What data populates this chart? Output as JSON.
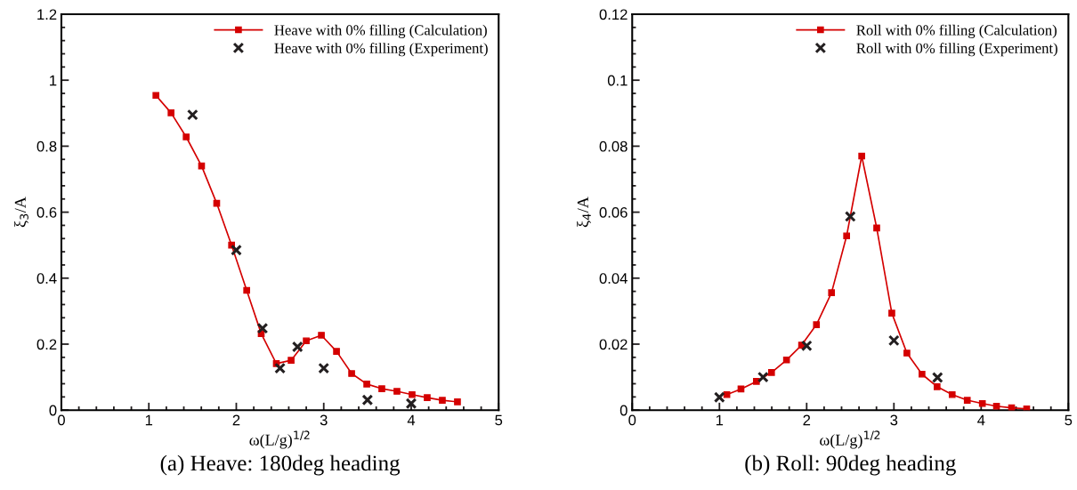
{
  "chart_data": [
    {
      "type": "line",
      "xlabel": "ω(L/g)$^{1/2}$",
      "ylabel": "ξ$_{3}$/A",
      "xlim": [
        0,
        5
      ],
      "ylim": [
        0,
        1.2
      ],
      "xticks": [
        0,
        1,
        2,
        3,
        4,
        5
      ],
      "yticks": [
        0,
        0.2,
        0.4,
        0.6,
        0.8,
        1,
        1.2
      ],
      "grid": false,
      "legend": "top right",
      "annotations": [
        "(a) Heave: 180deg heading"
      ],
      "series": [
        {
          "name": "Heave with 0% filling (Calculation)",
          "color": "#d40000",
          "marker": "square",
          "line_style": "solid",
          "x": [
            1.081,
            1.254,
            1.427,
            1.603,
            1.776,
            1.946,
            2.119,
            2.285,
            2.458,
            2.627,
            2.8,
            2.973,
            3.146,
            3.319,
            3.492,
            3.664,
            3.837,
            4.01,
            4.183,
            4.356,
            4.529
          ],
          "values": [
            0.954,
            0.901,
            0.828,
            0.74,
            0.627,
            0.5,
            0.363,
            0.232,
            0.141,
            0.151,
            0.21,
            0.227,
            0.178,
            0.111,
            0.079,
            0.065,
            0.057,
            0.047,
            0.038,
            0.03,
            0.025
          ]
        },
        {
          "name": "Heave with 0% filling (Experiment)",
          "type": "scatter",
          "color": "#231f20",
          "marker": "cross",
          "x": [
            1.5,
            2.0,
            2.3,
            2.5,
            2.7,
            3.0,
            3.5,
            4.0
          ],
          "values": [
            0.895,
            0.485,
            0.248,
            0.127,
            0.192,
            0.127,
            0.031,
            0.02
          ]
        }
      ]
    },
    {
      "type": "line",
      "xlabel": "ω(L/g)$^{1/2}$",
      "ylabel": "ξ$_{4}$/A",
      "xlim": [
        0,
        5
      ],
      "ylim": [
        0,
        0.12
      ],
      "xticks": [
        0,
        1,
        2,
        3,
        4,
        5
      ],
      "yticks": [
        0,
        0.02,
        0.04,
        0.06,
        0.08,
        0.1,
        0.12
      ],
      "grid": false,
      "legend": "top right",
      "annotations": [
        "(b) Roll: 90deg heading"
      ],
      "series": [
        {
          "name": "Roll with 0% filling (Calculation)",
          "color": "#d40000",
          "marker": "square",
          "line_style": "solid",
          "x": [
            1.085,
            1.247,
            1.424,
            1.597,
            1.769,
            1.942,
            2.112,
            2.285,
            2.458,
            2.631,
            2.803,
            2.976,
            3.149,
            3.322,
            3.495,
            3.668,
            3.841,
            4.014,
            4.176,
            4.349,
            4.522
          ],
          "values": [
            0.0047,
            0.0064,
            0.0087,
            0.0114,
            0.0152,
            0.0197,
            0.0259,
            0.0356,
            0.0528,
            0.077,
            0.0552,
            0.0294,
            0.0173,
            0.0109,
            0.0071,
            0.0047,
            0.003,
            0.002,
            0.0012,
            0.0007,
            0.0004
          ]
        },
        {
          "name": "Roll with 0% filling (Experiment)",
          "type": "scatter",
          "color": "#231f20",
          "marker": "cross",
          "x": [
            1.0,
            1.5,
            2.0,
            2.5,
            3.0,
            3.5
          ],
          "values": [
            0.0039,
            0.01,
            0.0195,
            0.0587,
            0.0211,
            0.0099
          ]
        }
      ]
    }
  ]
}
